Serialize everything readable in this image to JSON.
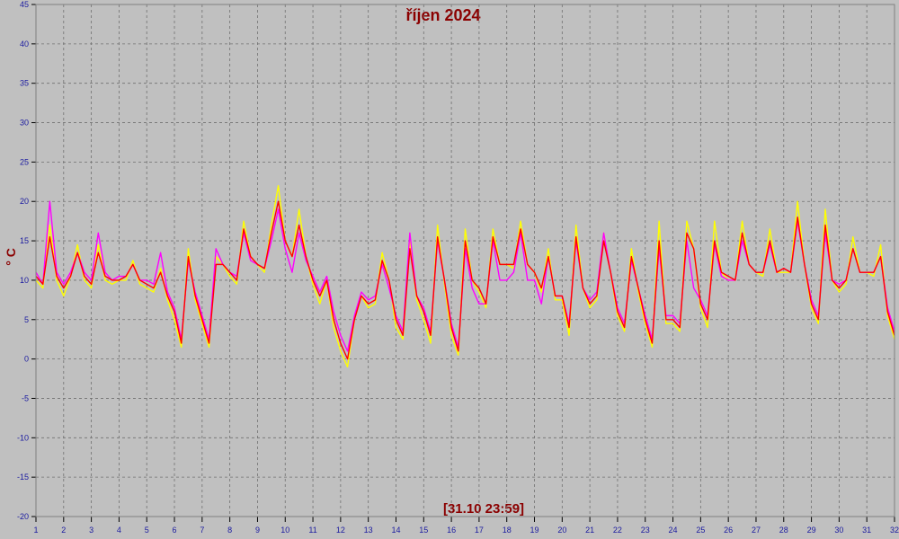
{
  "chart_data": {
    "type": "line",
    "title": "říjen 2024",
    "ylabel": "° C",
    "footer": "[31.10 23:59]",
    "x": [
      1,
      1.25,
      1.5,
      1.75,
      2,
      2.25,
      2.5,
      2.75,
      3,
      3.25,
      3.5,
      3.75,
      4,
      4.25,
      4.5,
      4.75,
      5,
      5.25,
      5.5,
      5.75,
      6,
      6.25,
      6.5,
      6.75,
      7,
      7.25,
      7.5,
      7.75,
      8,
      8.25,
      8.5,
      8.75,
      9,
      9.25,
      9.5,
      9.75,
      10,
      10.25,
      10.5,
      10.75,
      11,
      11.25,
      11.5,
      11.75,
      12,
      12.25,
      12.5,
      12.75,
      13,
      13.25,
      13.5,
      13.75,
      14,
      14.25,
      14.5,
      14.75,
      15,
      15.25,
      15.5,
      15.75,
      16,
      16.25,
      16.5,
      16.75,
      17,
      17.25,
      17.5,
      17.75,
      18,
      18.25,
      18.5,
      18.75,
      19,
      19.25,
      19.5,
      19.75,
      20,
      20.25,
      20.5,
      20.75,
      21,
      21.25,
      21.5,
      21.75,
      22,
      22.25,
      22.5,
      22.75,
      23,
      23.25,
      23.5,
      23.75,
      24,
      24.25,
      24.5,
      24.75,
      25,
      25.25,
      25.5,
      25.75,
      26,
      26.25,
      26.5,
      26.75,
      27,
      27.25,
      27.5,
      27.75,
      28,
      28.25,
      28.5,
      28.75,
      29,
      29.25,
      29.5,
      29.75,
      30,
      30.25,
      30.5,
      30.75,
      31,
      31.25,
      31.5,
      31.75,
      32
    ],
    "series": [
      {
        "color": "#ffff00",
        "values": [
          10,
          9,
          17,
          10,
          8,
          10.5,
          14.5,
          10,
          9,
          14.5,
          10,
          9.5,
          10,
          10,
          12.5,
          9.5,
          9,
          8.5,
          11.5,
          7.5,
          5,
          1.5,
          14,
          7.5,
          4.5,
          1.5,
          13,
          12,
          10.5,
          9.5,
          17.5,
          13,
          12,
          11,
          17,
          22,
          15,
          13,
          19,
          13,
          9.5,
          7,
          10,
          4,
          1,
          -1,
          5,
          8,
          6.5,
          7,
          13.5,
          10,
          4,
          2.5,
          15,
          7.5,
          5,
          2,
          17,
          9.5,
          3,
          0.5,
          16.5,
          10,
          8.5,
          6.5,
          16.5,
          12,
          12,
          11.5,
          17.5,
          12,
          11,
          8.5,
          14,
          7.5,
          7.5,
          3,
          17,
          9,
          6.5,
          7.5,
          16,
          11,
          5.5,
          3.5,
          14,
          8.5,
          4.5,
          1.5,
          17.5,
          4.5,
          4.5,
          3.5,
          17.5,
          14,
          6.5,
          4,
          17.5,
          11,
          10,
          10,
          17.5,
          12,
          11,
          10.5,
          16.5,
          11,
          11,
          11,
          20,
          12,
          6.5,
          4.5,
          19,
          10,
          8.5,
          9.5,
          15.5,
          11,
          11,
          10.5,
          14.5,
          5.5,
          2.5
        ]
      },
      {
        "color": "#ff00ff",
        "values": [
          11,
          9.5,
          20,
          11,
          9.5,
          11,
          13.5,
          11,
          10,
          16,
          11,
          10,
          10.5,
          10.5,
          12,
          10,
          10,
          9.5,
          13.5,
          8.5,
          6.5,
          2.5,
          12.5,
          8.5,
          5.5,
          2.5,
          14,
          12,
          11,
          10.5,
          16,
          12.5,
          12,
          11.5,
          15,
          19,
          14,
          11,
          16,
          12.5,
          10.5,
          8.5,
          10.5,
          6,
          3,
          1,
          5.5,
          8.5,
          7.5,
          8,
          12,
          9,
          5.5,
          3.5,
          16,
          8,
          6.5,
          3.5,
          15,
          10,
          4.5,
          1.5,
          14,
          9,
          7,
          7,
          15,
          10,
          10,
          11,
          16,
          10,
          10,
          7,
          13,
          8,
          8,
          4.5,
          15,
          9,
          7.5,
          8.5,
          16,
          11,
          6.5,
          4.5,
          12.5,
          9,
          5.5,
          2.5,
          14,
          5.5,
          5.5,
          4.5,
          15,
          9,
          7.5,
          5.5,
          14.5,
          10.5,
          10,
          10,
          15,
          12,
          11,
          11,
          14.5,
          11,
          11.5,
          11,
          17.5,
          12,
          7.5,
          5.5,
          16,
          10,
          9.5,
          10,
          14,
          11,
          11,
          11,
          13,
          6.5,
          3.5
        ]
      },
      {
        "color": "#ff0000",
        "values": [
          10.5,
          9.5,
          15.5,
          10.5,
          9,
          10.5,
          13.5,
          10.5,
          9.5,
          13.5,
          10.5,
          10,
          10,
          10.5,
          12,
          10,
          9.5,
          9,
          11,
          8,
          6,
          2,
          13,
          8,
          5,
          2,
          12,
          12,
          11,
          10,
          16.5,
          13,
          12,
          11.5,
          16,
          20,
          15,
          13,
          17,
          13,
          10,
          8,
          10,
          5,
          2,
          0,
          5,
          8,
          7,
          7.5,
          12.5,
          10,
          5,
          3,
          14,
          8,
          6,
          3,
          15.5,
          10,
          4,
          1,
          15,
          10,
          9,
          7,
          15.5,
          12,
          12,
          12,
          16.5,
          12,
          11,
          9,
          13,
          8,
          8,
          4,
          15.5,
          9,
          7,
          8,
          15,
          11,
          6,
          4,
          13,
          9,
          5,
          2,
          15,
          5,
          5,
          4,
          16,
          14,
          7,
          5,
          15,
          11,
          10.5,
          10,
          16,
          12,
          11,
          11,
          15,
          11,
          11.5,
          11,
          18,
          12,
          7,
          5,
          17,
          10,
          9,
          10,
          14,
          11,
          11,
          11,
          13,
          6,
          3
        ]
      }
    ],
    "xlim": [
      1,
      32
    ],
    "xticks": [
      1,
      2,
      3,
      4,
      5,
      6,
      7,
      8,
      9,
      10,
      11,
      12,
      13,
      14,
      15,
      16,
      17,
      18,
      19,
      20,
      21,
      22,
      23,
      24,
      25,
      26,
      27,
      28,
      29,
      30,
      31,
      32
    ],
    "ylim": [
      -20,
      45
    ],
    "yticks": [
      -20,
      -15,
      -10,
      -5,
      0,
      5,
      10,
      15,
      20,
      25,
      30,
      35,
      40,
      45
    ],
    "grid": true
  }
}
